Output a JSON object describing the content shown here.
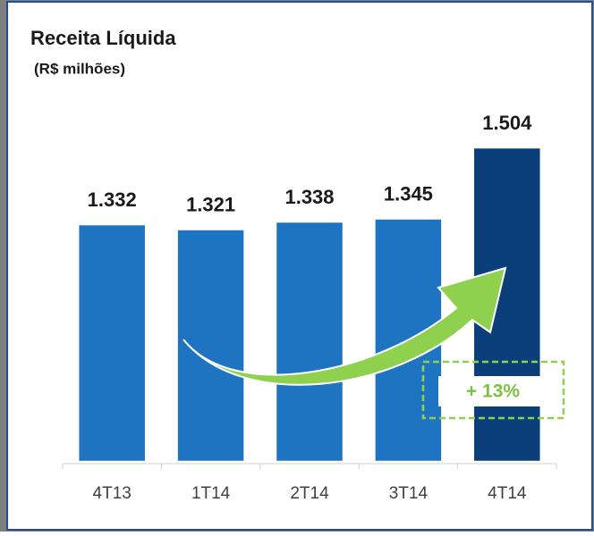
{
  "chart_data": {
    "type": "bar",
    "title": "Receita Líquida",
    "subtitle": "(R$ milhões)",
    "categories": [
      "4T13",
      "1T14",
      "2T14",
      "3T14",
      "4T14"
    ],
    "values": [
      1332,
      1321,
      1338,
      1345,
      1504
    ],
    "value_labels": [
      "1.332",
      "1.321",
      "1.338",
      "1.345",
      "1.504"
    ],
    "colors": [
      "#1f74c1",
      "#1f74c1",
      "#1f74c1",
      "#1f74c1",
      "#0b3f7a"
    ],
    "ylim": [
      800,
      1634
    ],
    "annotation": "+ 13%"
  }
}
